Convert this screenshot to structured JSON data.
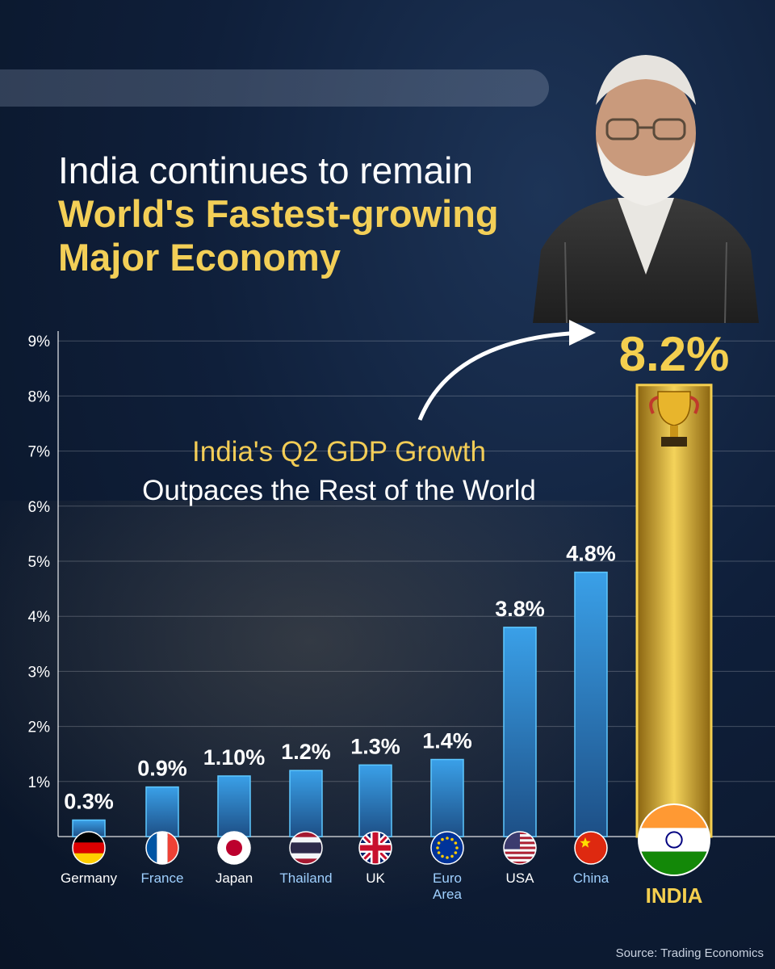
{
  "header": {
    "line1": "India continues to remain",
    "line2": "World's Fastest-growing",
    "line3": "Major Economy"
  },
  "callout": {
    "line1": "India's Q2 GDP Growth",
    "line2": "Outpaces the Rest of the World"
  },
  "source": "Source: Trading Economics",
  "colors": {
    "bar": "#2f8fd6",
    "highlight": "#f4cf4f",
    "accent_text": "#f3cf57"
  },
  "chart_data": {
    "type": "bar",
    "title": "",
    "xlabel": "",
    "ylabel": "",
    "ylim": [
      0,
      9
    ],
    "yticks": [
      "1%",
      "2%",
      "3%",
      "4%",
      "5%",
      "6%",
      "7%",
      "8%",
      "9%"
    ],
    "categories": [
      "Germany",
      "France",
      "Japan",
      "Thailand",
      "UK",
      "Euro Area",
      "USA",
      "China",
      "INDIA"
    ],
    "values": [
      0.3,
      0.9,
      1.1,
      1.2,
      1.3,
      1.4,
      3.8,
      4.8,
      8.2
    ],
    "labels": [
      "0.3%",
      "0.9%",
      "1.10%",
      "1.2%",
      "1.3%",
      "1.4%",
      "3.8%",
      "4.8%",
      "8.2%"
    ],
    "flags": [
      "germany-flag",
      "france-flag",
      "japan-flag",
      "thailand-flag",
      "uk-flag",
      "eu-flag",
      "usa-flag",
      "china-flag",
      "india-flag"
    ],
    "highlight": "INDIA",
    "grid": true
  }
}
